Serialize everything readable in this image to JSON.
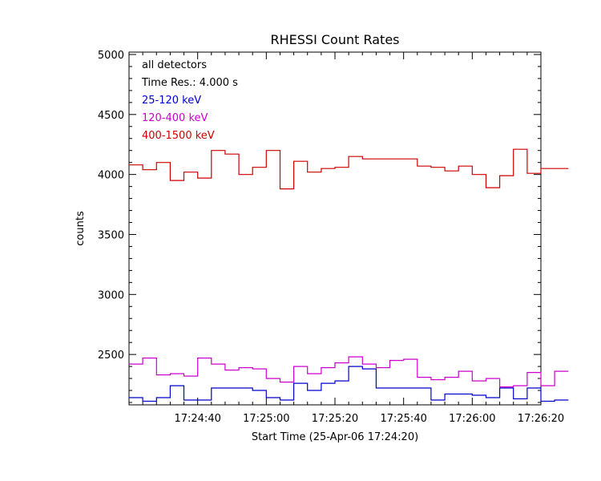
{
  "chart_data": {
    "type": "line",
    "title": "RHESSI Count Rates",
    "xlabel": "Start Time (25-Apr-06 17:24:20)",
    "ylabel": "counts",
    "annotations": [
      "all detectors",
      "Time Res.: 4.000 s"
    ],
    "xlim_seconds": [
      0,
      120
    ],
    "ylim": [
      2080,
      5020
    ],
    "x_tick_labels": [
      "17:24:40",
      "17:25:00",
      "17:25:20",
      "17:25:40",
      "17:26:00",
      "17:26:20"
    ],
    "x_tick_seconds": [
      20,
      40,
      60,
      80,
      100,
      120
    ],
    "y_ticks": [
      2500,
      3000,
      3500,
      4000,
      4500,
      5000
    ],
    "bin_width_s": 4,
    "series": [
      {
        "name": "25-120 keV",
        "color": "#0000cc",
        "values": [
          2140,
          2110,
          2140,
          2240,
          2120,
          2120,
          2220,
          2220,
          2220,
          2200,
          2140,
          2120,
          2260,
          2200,
          2260,
          2280,
          2400,
          2380,
          2220,
          2220,
          2220,
          2220,
          2120,
          2170,
          2170,
          2160,
          2140,
          2220,
          2130,
          2220,
          2110,
          2120
        ]
      },
      {
        "name": "120-400 keV",
        "color": "#cc00cc",
        "values": [
          2420,
          2470,
          2330,
          2340,
          2320,
          2470,
          2420,
          2370,
          2390,
          2380,
          2300,
          2270,
          2400,
          2340,
          2390,
          2430,
          2480,
          2420,
          2390,
          2450,
          2460,
          2310,
          2290,
          2310,
          2360,
          2280,
          2300,
          2230,
          2240,
          2350,
          2240,
          2360
        ]
      },
      {
        "name": "400-1500 keV",
        "color": "#cc0000",
        "values": [
          4080,
          4040,
          4100,
          3950,
          4020,
          3970,
          4200,
          4170,
          4000,
          4060,
          4200,
          3880,
          4110,
          4020,
          4050,
          4060,
          4150,
          4130,
          4130,
          4130,
          4130,
          4070,
          4060,
          4030,
          4070,
          4000,
          3890,
          3990,
          4210,
          4010,
          4050,
          4050
        ]
      }
    ]
  }
}
